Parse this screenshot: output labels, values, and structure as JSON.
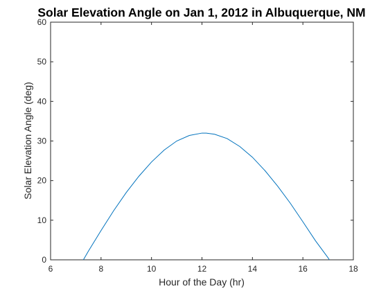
{
  "chart_data": {
    "type": "line",
    "title": "Solar Elevation Angle on Jan 1, 2012 in Albuquerque, NM",
    "xlabel": "Hour of the Day (hr)",
    "ylabel": "Solar Elevation Angle (deg)",
    "xlim": [
      6,
      18
    ],
    "ylim": [
      0,
      60
    ],
    "xticks": [
      6,
      8,
      10,
      12,
      14,
      16,
      18
    ],
    "yticks": [
      0,
      10,
      20,
      30,
      40,
      50,
      60
    ],
    "grid": false,
    "series": [
      {
        "color": "#0072bd",
        "x": [
          7.3,
          7.5,
          8.0,
          8.5,
          9.0,
          9.5,
          10.0,
          10.5,
          11.0,
          11.5,
          12.0,
          12.17,
          12.5,
          13.0,
          13.5,
          14.0,
          14.5,
          15.0,
          15.5,
          16.0,
          16.5,
          17.0,
          17.05
        ],
        "y": [
          0,
          2.2,
          7.4,
          12.4,
          17.0,
          21.1,
          24.7,
          27.7,
          30.0,
          31.4,
          32.0,
          32.0,
          31.7,
          30.6,
          28.6,
          25.9,
          22.5,
          18.6,
          14.3,
          9.6,
          4.8,
          0.5,
          0
        ]
      }
    ]
  }
}
